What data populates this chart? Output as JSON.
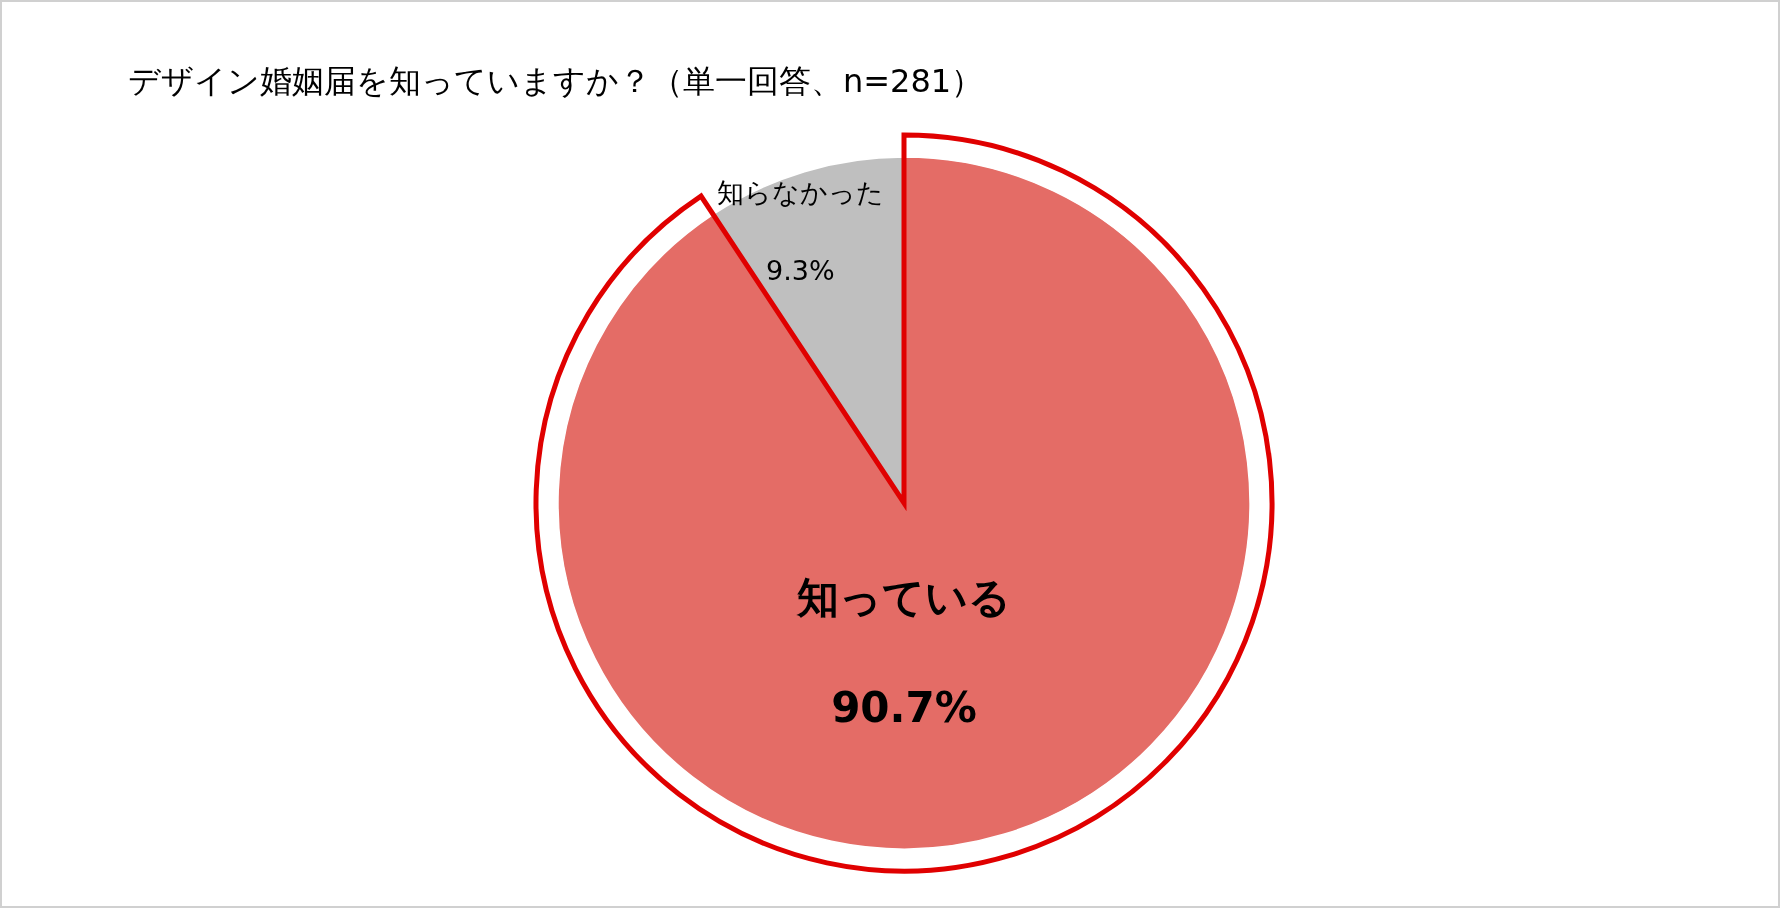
{
  "chart_data": {
    "type": "pie",
    "title": "デザイン婚姻届を知っていますか？（単一回答、n=281）",
    "categories": [
      "知っている",
      "知らなかった"
    ],
    "values": [
      90.7,
      9.3
    ],
    "colors": [
      "#e46c66",
      "#bfbfbf"
    ],
    "value_labels": [
      "90.7%",
      "9.3%"
    ]
  }
}
